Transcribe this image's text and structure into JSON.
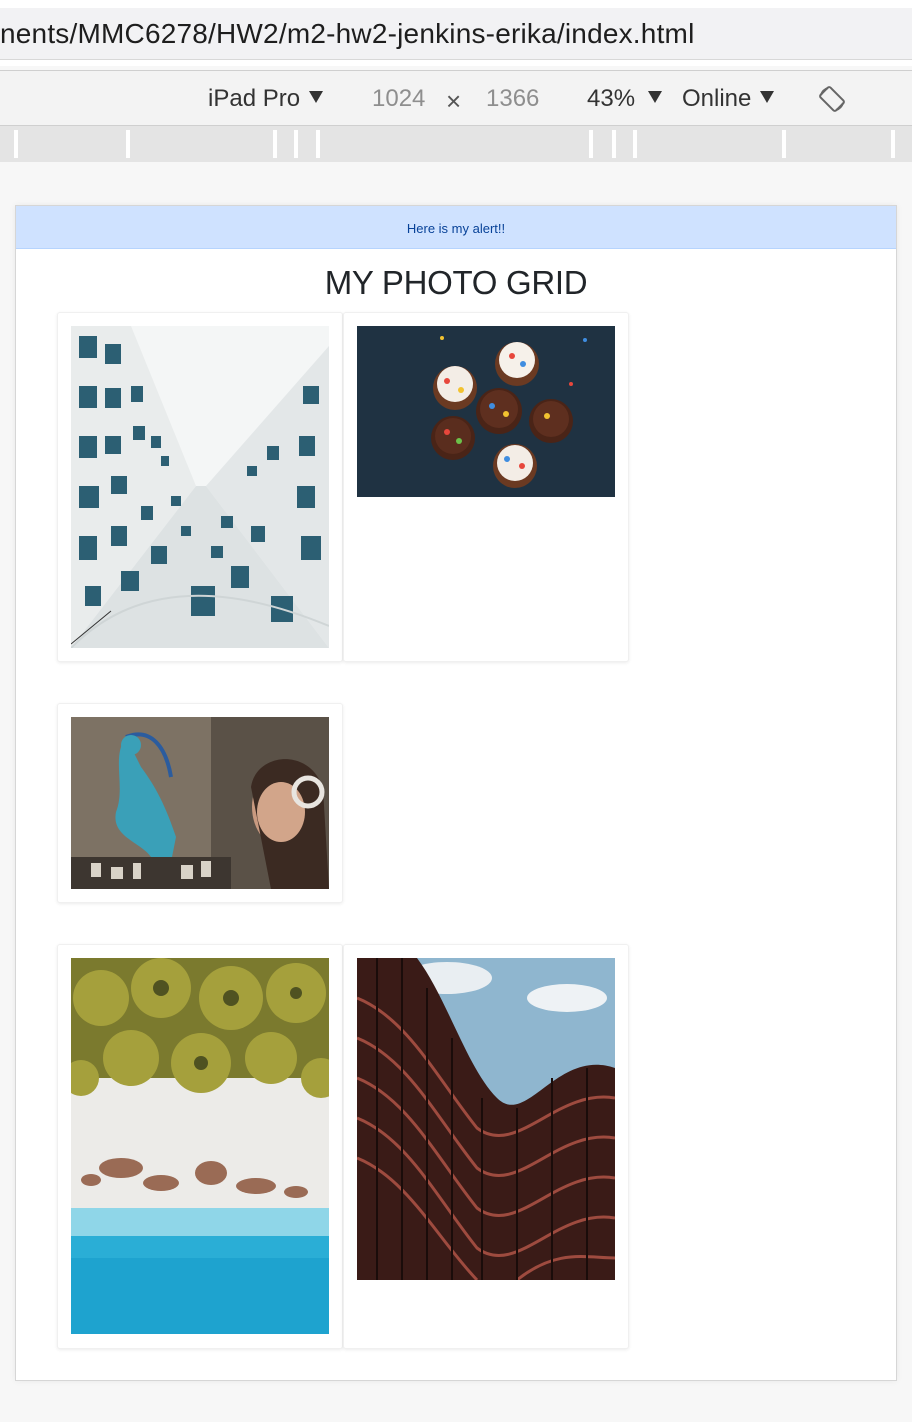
{
  "browser": {
    "url": "nents/MMC6278/HW2/m2-hw2-jenkins-erika/index.html"
  },
  "devtools": {
    "device": "iPad Pro",
    "width": "1024",
    "times": "×",
    "height": "1366",
    "zoom": "43%",
    "network": "Online",
    "rotate_icon": "rotate-device-icon"
  },
  "page": {
    "alert": "Here is my alert!!",
    "heading": "MY PHOTO GRID",
    "colors": {
      "alert_bg": "#cfe2ff",
      "alert_text": "#084298"
    }
  },
  "photos": [
    {
      "subject": "building-looking-up-photo"
    },
    {
      "subject": "cupcakes-photo"
    },
    {
      "subject": "graffiti-and-girl-photo"
    },
    {
      "subject": "aerial-beach-palms-photo"
    },
    {
      "subject": "curved-building-photo"
    }
  ]
}
